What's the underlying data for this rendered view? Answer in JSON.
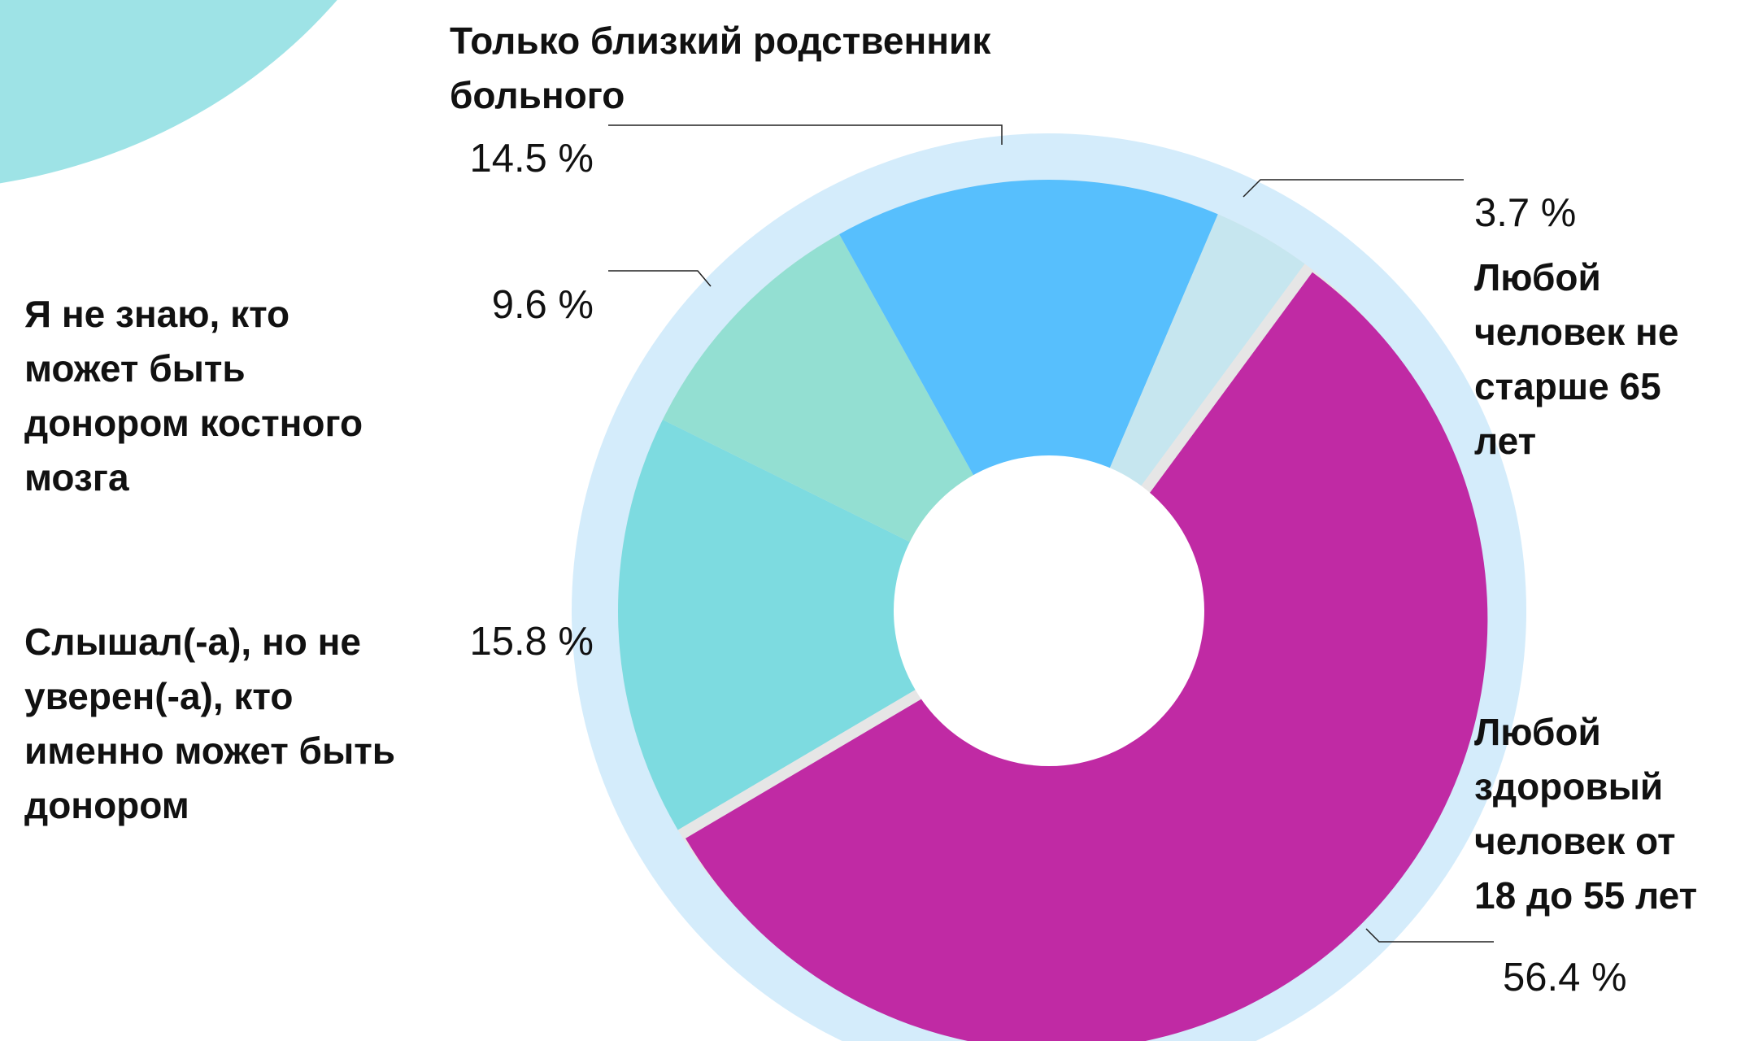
{
  "chart_data": {
    "type": "donut",
    "categories": [
      "Любой\nздоровый\nчеловек от\n18 до 55 лет",
      "Слышал(-а), но не\nуверен(-а), кто\nименно может быть\nдонором",
      "Я не знаю, кто\nможет быть\nдонором костного\nмозга",
      "Только близкий родственник\nбольного",
      "Любой\nчеловек не\nстарше 65\nлет"
    ],
    "values": [
      56.4,
      15.8,
      9.6,
      14.5,
      3.7
    ],
    "value_labels": [
      "56.4 %",
      "15.8 %",
      "9.6 %",
      "14.5 %",
      "3.7 %"
    ],
    "colors": [
      "#c02aa4",
      "#7ddbe0",
      "#93dfd2",
      "#57bffd",
      "#c6e6ef"
    ]
  }
}
